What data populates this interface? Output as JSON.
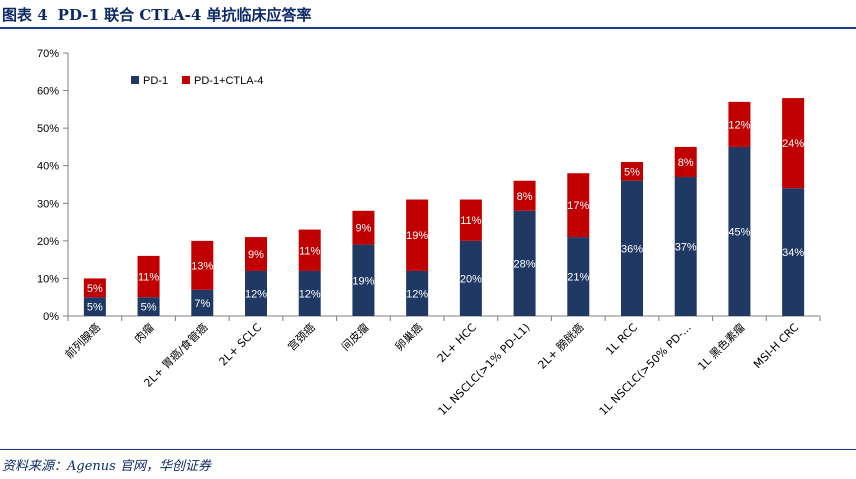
{
  "figure": {
    "label": "图表 4",
    "title": "PD-1 联合 CTLA-4 单抗临床应答率",
    "source": "资料来源：Agenus 官网，华创证券"
  },
  "colors": {
    "pd1": "#1f3864",
    "combo": "#c00000",
    "axis": "#7f7f7f"
  },
  "chart_data": {
    "type": "bar",
    "stacked": true,
    "categories": [
      "前列腺癌",
      "肉瘤",
      "2L+ 胃癌/食管癌",
      "2L+ SCLC",
      "宫颈癌",
      "间皮瘤",
      "卵巢癌",
      "2L+ HCC",
      "1L NSCLC(>1% PD-L1)",
      "2L+ 膀胱癌",
      "1L RCC",
      "1L NSCLC(>50% PD-...",
      "1L 黑色素瘤",
      "MSI-H CRC"
    ],
    "series": [
      {
        "name": "PD-1",
        "values": [
          5,
          5,
          7,
          12,
          12,
          19,
          12,
          20,
          28,
          21,
          36,
          37,
          45,
          34
        ],
        "labels": [
          "5%",
          "5%",
          "7%",
          "12%",
          "12%",
          "19%",
          "12%",
          "20%",
          "28%",
          "21%",
          "36%",
          "37%",
          "45%",
          "34%"
        ]
      },
      {
        "name": "PD-1+CTLA-4",
        "values": [
          5,
          11,
          13,
          9,
          11,
          9,
          19,
          11,
          8,
          17,
          5,
          8,
          12,
          24
        ],
        "labels": [
          "5%",
          "11%",
          "13%",
          "9%",
          "11%",
          "9%",
          "19%",
          "11%",
          "8%",
          "17%",
          "5%",
          "8%",
          "12%",
          "24%"
        ]
      }
    ],
    "ylim": [
      0,
      70
    ],
    "yticks": [
      0,
      10,
      20,
      30,
      40,
      50,
      60,
      70
    ],
    "ytick_labels": [
      "0%",
      "10%",
      "20%",
      "30%",
      "40%",
      "50%",
      "60%",
      "70%"
    ],
    "legend_position": "top-left",
    "grid": false
  }
}
